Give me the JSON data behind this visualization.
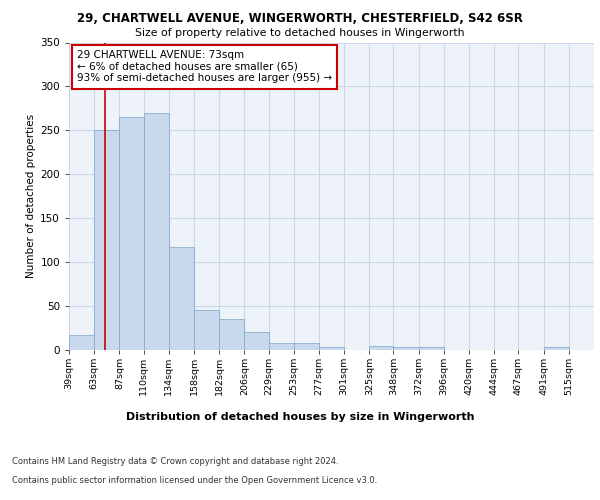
{
  "title_line1": "29, CHARTWELL AVENUE, WINGERWORTH, CHESTERFIELD, S42 6SR",
  "title_line2": "Size of property relative to detached houses in Wingerworth",
  "xlabel": "Distribution of detached houses by size in Wingerworth",
  "ylabel": "Number of detached properties",
  "bar_labels": [
    "39sqm",
    "63sqm",
    "87sqm",
    "110sqm",
    "134sqm",
    "158sqm",
    "182sqm",
    "206sqm",
    "229sqm",
    "253sqm",
    "277sqm",
    "301sqm",
    "325sqm",
    "348sqm",
    "372sqm",
    "396sqm",
    "420sqm",
    "444sqm",
    "467sqm",
    "491sqm",
    "515sqm"
  ],
  "bar_values": [
    17,
    250,
    265,
    270,
    117,
    45,
    35,
    21,
    8,
    8,
    3,
    0,
    4,
    3,
    3,
    0,
    0,
    0,
    0,
    3,
    0
  ],
  "bar_color": "#c9d9ed",
  "bar_edge_color": "#7ba4c7",
  "grid_color": "#c8d8e8",
  "background_color": "#eef3f9",
  "annotation_box_text": "29 CHARTWELL AVENUE: 73sqm\n← 6% of detached houses are smaller (65)\n93% of semi-detached houses are larger (955) →",
  "annotation_box_facecolor": "#ffffff",
  "annotation_box_edgecolor": "#cc0000",
  "red_line_x": 73,
  "ylim": [
    0,
    350
  ],
  "yticks": [
    0,
    50,
    100,
    150,
    200,
    250,
    300,
    350
  ],
  "footer_line1": "Contains HM Land Registry data © Crown copyright and database right 2024.",
  "footer_line2": "Contains public sector information licensed under the Open Government Licence v3.0.",
  "bin_starts": [
    39,
    63,
    87,
    110,
    134,
    158,
    182,
    206,
    229,
    253,
    277,
    301,
    325,
    348,
    372,
    396,
    420,
    444,
    467,
    491,
    515
  ],
  "xlim_max": 539
}
